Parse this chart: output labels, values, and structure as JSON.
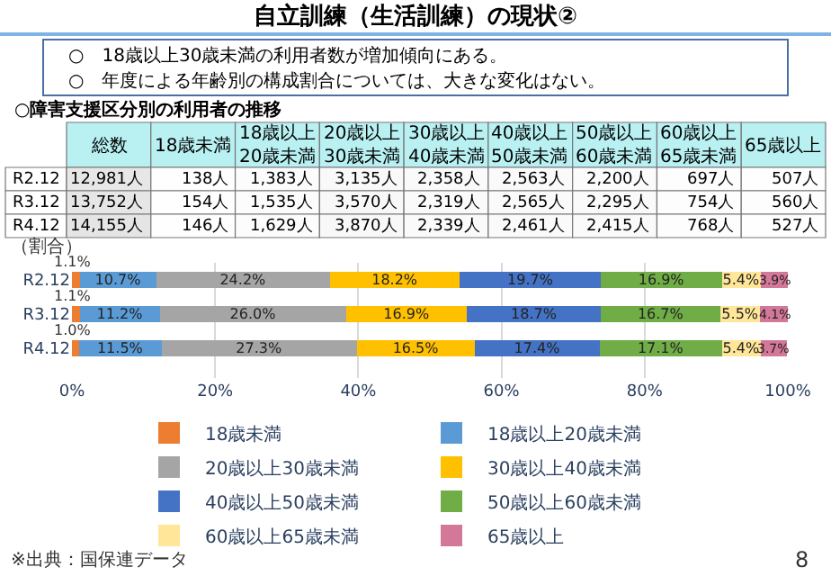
{
  "chart_data": [
    {
      "type": "other",
      "title": "自立訓練（生活訓練）の現状②",
      "annotations": [
        "○　18歳以上30歳未満の利用者数が増加傾向にある。",
        "○　年度による年齢別の構成割合については、大きな変化はない。"
      ]
    },
    {
      "type": "heatmap",
      "title": "○障害支援区分別の利用者の推移",
      "categories": [
        "総数",
        "18歳未満",
        "18歳以上\n20歳未満",
        "20歳以上\n30歳未満",
        "30歳以上\n40歳未満",
        "40歳以上\n50歳未満",
        "50歳以上\n60歳未満",
        "60歳以上\n65歳未満",
        "65歳以上"
      ],
      "y_categories": [
        "R2.12",
        "R3.12",
        "R4.12"
      ],
      "cells": [
        [
          12981,
          138,
          1383,
          3135,
          2358,
          2563,
          2200,
          697,
          507
        ],
        [
          13752,
          154,
          1535,
          3570,
          2319,
          2565,
          2295,
          754,
          560
        ],
        [
          14155,
          146,
          1629,
          3870,
          2339,
          2461,
          2415,
          768,
          527
        ]
      ],
      "cell_labels": [
        [
          "12,981人",
          "138人",
          "1,383人",
          "3,135人",
          "2,358人",
          "2,563人",
          "2,200人",
          "697人",
          "507人"
        ],
        [
          "13,752人",
          "154人",
          "1,535人",
          "3,570人",
          "2,319人",
          "2,565人",
          "2,295人",
          "754人",
          "560人"
        ],
        [
          "14,155人",
          "146人",
          "1,629人",
          "3,870人",
          "2,339人",
          "2,461人",
          "2,415人",
          "768人",
          "527人"
        ]
      ]
    },
    {
      "type": "bar",
      "orientation": "horizontal",
      "stacked": true,
      "categories": [
        "R2.12",
        "R3.12",
        "R4.12"
      ],
      "series": [
        {
          "name": "18歳未満",
          "color": "#ed7d31",
          "values": [
            1.1,
            1.1,
            1.0
          ],
          "value_labels": [
            "1.1%",
            "1.1%",
            "1.0%"
          ]
        },
        {
          "name": "18歳以上20歳未満",
          "color": "#5b9bd5",
          "values": [
            10.7,
            11.2,
            11.5
          ],
          "value_labels": [
            "10.7%",
            "11.2%",
            "11.5%"
          ]
        },
        {
          "name": "20歳以上30歳未満",
          "color": "#a5a5a5",
          "values": [
            24.2,
            26.0,
            27.3
          ],
          "value_labels": [
            "24.2%",
            "26.0%",
            "27.3%"
          ]
        },
        {
          "name": "30歳以上40歳未満",
          "color": "#ffc000",
          "values": [
            18.2,
            16.9,
            16.5
          ],
          "value_labels": [
            "18.2%",
            "16.9%",
            "16.5%"
          ]
        },
        {
          "name": "40歳以上50歳未満",
          "color": "#4472c4",
          "values": [
            19.7,
            18.7,
            17.4
          ],
          "value_labels": [
            "19.7%",
            "18.7%",
            "17.4%"
          ]
        },
        {
          "name": "50歳以上60歳未満",
          "color": "#70ad47",
          "values": [
            16.9,
            16.7,
            17.1
          ],
          "value_labels": [
            "16.9%",
            "16.7%",
            "17.1%"
          ]
        },
        {
          "name": "60歳以上65歳未満",
          "color": "#ffe699",
          "values": [
            5.4,
            5.5,
            5.4
          ],
          "value_labels": [
            "5.4%",
            "5.5%",
            "5.4%"
          ]
        },
        {
          "name": "65歳以上",
          "color": "#d4789a",
          "values": [
            3.9,
            4.1,
            3.7
          ],
          "value_labels": [
            "3.9%",
            "4.1%",
            "3.7%"
          ]
        }
      ],
      "xlim": [
        0,
        100
      ],
      "xticks": [
        {
          "value": 0,
          "label": "0%"
        },
        {
          "value": 20,
          "label": "20%"
        },
        {
          "value": 40,
          "label": "40%"
        },
        {
          "value": 60,
          "label": "60%"
        },
        {
          "value": 80,
          "label": "80%"
        },
        {
          "value": 100,
          "label": "100%"
        }
      ],
      "grid": "x",
      "legend": "bottom",
      "annotations": [
        "（割合）",
        "※出典：国保連データ",
        "8"
      ]
    }
  ]
}
